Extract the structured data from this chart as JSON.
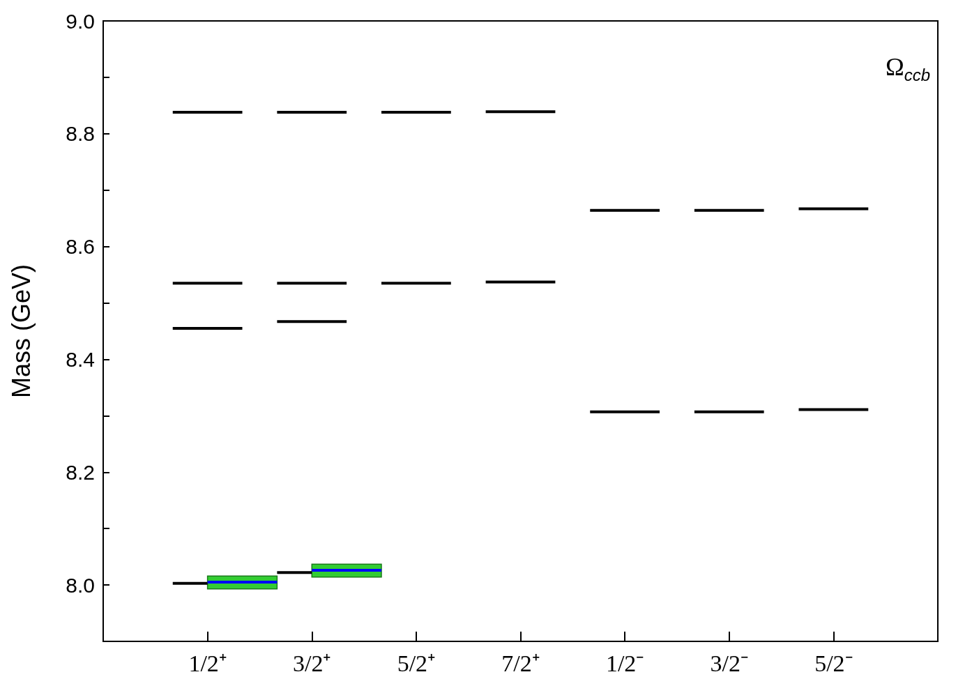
{
  "chart_data": {
    "type": "line",
    "ylabel": "Mass (GeV)",
    "annotations": [
      "Ω$_{ccb}$"
    ],
    "marker": "none",
    "line_style": "solid",
    "grid": false,
    "categories": [
      null,
      null,
      null,
      "1/2⁺",
      null,
      null,
      "3/2⁺",
      null,
      null,
      "5/2⁺",
      null,
      null,
      "7/2⁺",
      null,
      null,
      "1/2⁻",
      null,
      null,
      "3/2⁻",
      null,
      null,
      "5/2⁻",
      null,
      null,
      null
    ],
    "ylim": [
      7.9,
      9.0
    ],
    "yticks": [
      {
        "value": 8.0,
        "label": "8.0"
      },
      {
        "value": 8.1,
        "label": null
      },
      {
        "value": 8.2,
        "label": "8.2"
      },
      {
        "value": 8.3,
        "label": null
      },
      {
        "value": 8.4,
        "label": "8.4"
      },
      {
        "value": 8.5,
        "label": null
      },
      {
        "value": 8.6,
        "label": "8.6"
      },
      {
        "value": 8.7,
        "label": null
      },
      {
        "value": 8.8,
        "label": "8.8"
      },
      {
        "value": 8.9,
        "label": null
      },
      {
        "value": 9.0,
        "label": "9.0"
      }
    ],
    "series": [
      {
        "color": "#000000",
        "values": [
          null,
          null,
          8.838,
          8.838,
          8.838,
          null,
          null,
          null,
          null,
          null,
          null,
          null,
          null,
          null,
          null,
          null,
          null,
          null,
          null,
          null,
          null,
          null,
          null,
          null,
          null
        ]
      },
      {
        "color": "#000000",
        "values": [
          null,
          null,
          8.535,
          8.535,
          8.535,
          null,
          null,
          null,
          null,
          null,
          null,
          null,
          null,
          null,
          null,
          null,
          null,
          null,
          null,
          null,
          null,
          null,
          null,
          null,
          null
        ]
      },
      {
        "color": "#000000",
        "values": [
          null,
          null,
          8.455,
          8.455,
          8.455,
          null,
          null,
          null,
          null,
          null,
          null,
          null,
          null,
          null,
          null,
          null,
          null,
          null,
          null,
          null,
          null,
          null,
          null,
          null,
          null
        ]
      },
      {
        "color": "#000000",
        "values": [
          null,
          null,
          8.003,
          8.003,
          null,
          null,
          null,
          null,
          null,
          null,
          null,
          null,
          null,
          null,
          null,
          null,
          null,
          null,
          null,
          null,
          null,
          null,
          null,
          null,
          null
        ]
      },
      {
        "color": "#0000ff",
        "values": [
          null,
          null,
          null,
          8.005,
          8.005,
          8.005,
          null,
          null,
          null,
          null,
          null,
          null,
          null,
          null,
          null,
          null,
          null,
          null,
          null,
          null,
          null,
          null,
          null,
          null,
          null
        ],
        "lower": [
          null,
          null,
          null,
          7.993,
          7.993,
          7.993,
          null,
          null,
          null,
          null,
          null,
          null,
          null,
          null,
          null,
          null,
          null,
          null,
          null,
          null,
          null,
          null,
          null,
          null,
          null
        ],
        "upper": [
          null,
          null,
          null,
          8.016,
          8.016,
          8.016,
          null,
          null,
          null,
          null,
          null,
          null,
          null,
          null,
          null,
          null,
          null,
          null,
          null,
          null,
          null,
          null,
          null,
          null,
          null
        ]
      },
      {
        "color": "#000000",
        "values": [
          null,
          null,
          null,
          null,
          null,
          8.838,
          8.838,
          8.838,
          null,
          null,
          null,
          null,
          null,
          null,
          null,
          null,
          null,
          null,
          null,
          null,
          null,
          null,
          null,
          null,
          null
        ]
      },
      {
        "color": "#000000",
        "values": [
          null,
          null,
          null,
          null,
          null,
          8.535,
          8.535,
          8.535,
          null,
          null,
          null,
          null,
          null,
          null,
          null,
          null,
          null,
          null,
          null,
          null,
          null,
          null,
          null,
          null,
          null
        ]
      },
      {
        "color": "#000000",
        "values": [
          null,
          null,
          null,
          null,
          null,
          8.467,
          8.467,
          8.467,
          null,
          null,
          null,
          null,
          null,
          null,
          null,
          null,
          null,
          null,
          null,
          null,
          null,
          null,
          null,
          null,
          null
        ]
      },
      {
        "color": "#000000",
        "values": [
          null,
          null,
          null,
          null,
          null,
          8.022,
          8.022,
          null,
          null,
          null,
          null,
          null,
          null,
          null,
          null,
          null,
          null,
          null,
          null,
          null,
          null,
          null,
          null,
          null,
          null
        ]
      },
      {
        "color": "#0000ff",
        "values": [
          null,
          null,
          null,
          null,
          null,
          null,
          8.026,
          8.026,
          8.026,
          null,
          null,
          null,
          null,
          null,
          null,
          null,
          null,
          null,
          null,
          null,
          null,
          null,
          null,
          null,
          null
        ],
        "lower": [
          null,
          null,
          null,
          null,
          null,
          null,
          8.014,
          8.014,
          8.014,
          null,
          null,
          null,
          null,
          null,
          null,
          null,
          null,
          null,
          null,
          null,
          null,
          null,
          null,
          null,
          null
        ],
        "upper": [
          null,
          null,
          null,
          null,
          null,
          null,
          8.037,
          8.037,
          8.037,
          null,
          null,
          null,
          null,
          null,
          null,
          null,
          null,
          null,
          null,
          null,
          null,
          null,
          null,
          null,
          null
        ]
      },
      {
        "color": "#000000",
        "values": [
          null,
          null,
          null,
          null,
          null,
          null,
          null,
          null,
          8.838,
          8.838,
          8.838,
          null,
          null,
          null,
          null,
          null,
          null,
          null,
          null,
          null,
          null,
          null,
          null,
          null,
          null
        ]
      },
      {
        "color": "#000000",
        "values": [
          null,
          null,
          null,
          null,
          null,
          null,
          null,
          null,
          8.535,
          8.535,
          8.535,
          null,
          null,
          null,
          null,
          null,
          null,
          null,
          null,
          null,
          null,
          null,
          null,
          null,
          null
        ]
      },
      {
        "color": "#000000",
        "values": [
          null,
          null,
          null,
          null,
          null,
          null,
          null,
          null,
          null,
          null,
          null,
          8.839,
          8.839,
          8.839,
          null,
          null,
          null,
          null,
          null,
          null,
          null,
          null,
          null,
          null,
          null
        ]
      },
      {
        "color": "#000000",
        "values": [
          null,
          null,
          null,
          null,
          null,
          null,
          null,
          null,
          null,
          null,
          null,
          8.537,
          8.537,
          8.537,
          null,
          null,
          null,
          null,
          null,
          null,
          null,
          null,
          null,
          null,
          null
        ]
      },
      {
        "color": "#000000",
        "values": [
          null,
          null,
          null,
          null,
          null,
          null,
          null,
          null,
          null,
          null,
          null,
          null,
          null,
          null,
          8.664,
          8.664,
          8.664,
          null,
          null,
          null,
          null,
          null,
          null,
          null,
          null
        ]
      },
      {
        "color": "#000000",
        "values": [
          null,
          null,
          null,
          null,
          null,
          null,
          null,
          null,
          null,
          null,
          null,
          null,
          null,
          null,
          8.307,
          8.307,
          8.307,
          null,
          null,
          null,
          null,
          null,
          null,
          null,
          null
        ]
      },
      {
        "color": "#000000",
        "values": [
          null,
          null,
          null,
          null,
          null,
          null,
          null,
          null,
          null,
          null,
          null,
          null,
          null,
          null,
          null,
          null,
          null,
          8.664,
          8.664,
          8.664,
          null,
          null,
          null,
          null,
          null
        ]
      },
      {
        "color": "#000000",
        "values": [
          null,
          null,
          null,
          null,
          null,
          null,
          null,
          null,
          null,
          null,
          null,
          null,
          null,
          null,
          null,
          null,
          null,
          8.307,
          8.307,
          8.307,
          null,
          null,
          null,
          null,
          null
        ]
      },
      {
        "color": "#000000",
        "values": [
          null,
          null,
          null,
          null,
          null,
          null,
          null,
          null,
          null,
          null,
          null,
          null,
          null,
          null,
          null,
          null,
          null,
          null,
          null,
          null,
          8.667,
          8.667,
          8.667,
          null,
          null
        ]
      },
      {
        "color": "#000000",
        "values": [
          null,
          null,
          null,
          null,
          null,
          null,
          null,
          null,
          null,
          null,
          null,
          null,
          null,
          null,
          null,
          null,
          null,
          null,
          null,
          null,
          8.311,
          8.311,
          8.311,
          null,
          null
        ]
      }
    ]
  }
}
